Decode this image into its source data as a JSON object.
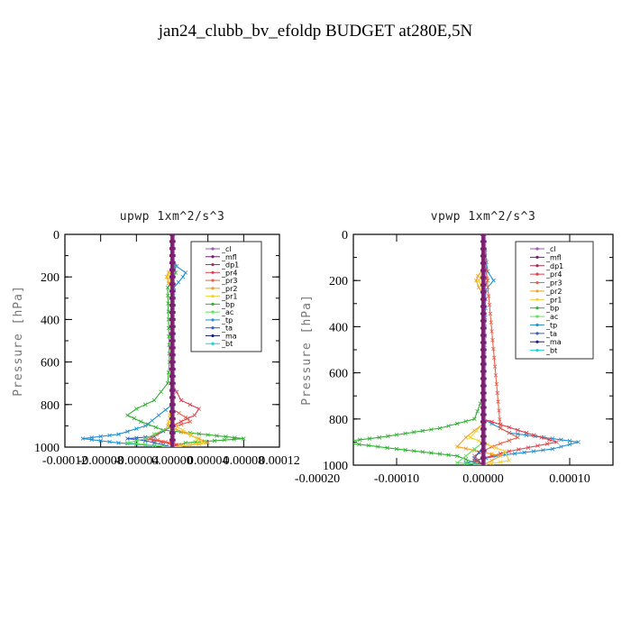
{
  "figure": {
    "title": "jan24_clubb_bv_efoldp  BUDGET at280E,5N"
  },
  "colors": {
    "_cl": "#9b59b6",
    "_mfl": "#7b1f6f",
    "_dp1": "#a0305a",
    "_pr4": "#e0404a",
    "_pr3": "#e8604a",
    "_pr2": "#f0a020",
    "_pr1": "#f5d030",
    "_bp": "#30b030",
    "_ac": "#60e060",
    "_tp": "#2090d0",
    "_ta": "#3060c0",
    "_ma": "#202080",
    "_bt": "#20d0d0"
  },
  "chart_data": [
    {
      "type": "line",
      "title": "upwp   1xm^2/s^3",
      "ylabel": "Pressure [hPa]",
      "xlim": [
        -0.00012,
        0.00012
      ],
      "ylim": [
        1000,
        0
      ],
      "x_ticks": [
        "-0.00012",
        "-0.00008",
        "-0.00004",
        "0.00000",
        "0.00004",
        "0.00008",
        "0.00012"
      ],
      "y_ticks": [
        "0",
        "200",
        "400",
        "600",
        "800",
        "1000"
      ],
      "legend": [
        "_cl",
        "_mfl",
        "_dp1",
        "_pr4",
        "_pr3",
        "_pr2",
        "_pr1",
        "_bp",
        "_ac",
        "_tp",
        "_ta",
        "_ma",
        "_bt"
      ],
      "legend_position": "top-right",
      "series": [
        {
          "name": "_bp",
          "y": [
            0,
            100,
            150,
            180,
            250,
            400,
            600,
            700,
            780,
            820,
            850,
            880,
            920,
            960,
            980,
            1000
          ],
          "x": [
            0,
            0,
            3e-06,
            4e-06,
            -5e-06,
            -4e-06,
            -3e-06,
            -5e-06,
            -2e-05,
            -4e-05,
            -5e-05,
            -3.5e-05,
            -1e-05,
            8e-05,
            1.5e-05,
            0
          ]
        },
        {
          "name": "_tp",
          "y": [
            0,
            100,
            150,
            180,
            200,
            250,
            400,
            800,
            900,
            940,
            960,
            980,
            1000
          ],
          "x": [
            0,
            0,
            5e-06,
            1.5e-05,
            1.2e-05,
            2e-06,
            0,
            0,
            -3e-05,
            -6e-05,
            -0.0001,
            -6e-05,
            0
          ]
        },
        {
          "name": "_ta",
          "y": [
            0,
            900,
            950,
            960,
            970,
            990,
            1000
          ],
          "x": [
            0,
            0,
            -2e-05,
            -5e-05,
            -3e-05,
            -1e-05,
            0
          ]
        },
        {
          "name": "_pr4",
          "y": [
            0,
            700,
            780,
            820,
            850,
            880,
            920,
            960,
            990,
            1000
          ],
          "x": [
            0,
            0,
            1e-05,
            3e-05,
            2.5e-05,
            1e-05,
            -1e-05,
            -3e-05,
            5e-06,
            0
          ]
        },
        {
          "name": "_pr3",
          "y": [
            0,
            820,
            860,
            880,
            920,
            960,
            990,
            1000
          ],
          "x": [
            0,
            0,
            1.5e-05,
            2e-05,
            -1e-05,
            -2.5e-05,
            1e-05,
            0
          ]
        },
        {
          "name": "_pr2",
          "y": [
            0,
            150,
            180,
            200,
            230,
            260,
            800,
            900,
            960,
            980,
            1000
          ],
          "x": [
            0,
            0,
            -4e-06,
            -6e-06,
            -4e-06,
            0,
            0,
            -5e-06,
            3e-05,
            4e-05,
            0
          ]
        },
        {
          "name": "_pr1",
          "y": [
            0,
            150,
            180,
            200,
            230,
            800,
            880,
            940,
            980,
            1000
          ],
          "x": [
            0,
            0,
            -3e-06,
            -5e-06,
            0,
            0,
            -4e-06,
            2e-05,
            3.5e-05,
            0
          ]
        },
        {
          "name": "_ac",
          "y": [
            0,
            900,
            960,
            980,
            1000
          ],
          "x": [
            0,
            0,
            -3e-05,
            -5e-05,
            0
          ]
        },
        {
          "name": "_dp1",
          "y": [
            0,
            1000
          ],
          "x": [
            0,
            0
          ]
        },
        {
          "name": "_cl",
          "y": [
            0,
            1000
          ],
          "x": [
            1e-06,
            1e-06
          ]
        },
        {
          "name": "_mfl",
          "y": [
            0,
            1000
          ],
          "x": [
            0,
            0
          ]
        }
      ]
    },
    {
      "type": "line",
      "title": "vpwp   1xm^2/s^3",
      "ylabel": "Pressure [hPa]",
      "xlim": [
        -0.00015,
        0.00015
      ],
      "ylim": [
        1000,
        0
      ],
      "x_ticks": [
        "-0.00020",
        "-0.00010",
        "0.00000",
        "0.00010"
      ],
      "y_ticks": [
        "0",
        "200",
        "400",
        "600",
        "800",
        "1000"
      ],
      "legend": [
        "_cl",
        "_mfl",
        "_dp1",
        "_pr4",
        "_pr3",
        "_pr2",
        "_pr1",
        "_bp",
        "_ac",
        "_tp",
        "_ta",
        "_ma",
        "_bt"
      ],
      "legend_position": "top-right",
      "series": [
        {
          "name": "_bp",
          "y": [
            0,
            150,
            200,
            250,
            700,
            800,
            840,
            880,
            900,
            930,
            960,
            990,
            1000
          ],
          "x": [
            0,
            3e-06,
            5e-06,
            0,
            0,
            -1e-05,
            -5e-05,
            -0.00012,
            -0.000165,
            -0.0001,
            -3e-05,
            -1e-05,
            0
          ]
        },
        {
          "name": "_tp",
          "y": [
            0,
            160,
            200,
            240,
            800,
            860,
            900,
            930,
            960,
            990,
            1000
          ],
          "x": [
            0,
            5e-06,
            1.2e-05,
            3e-06,
            0,
            3e-05,
            0.00011,
            8e-05,
            1.5e-05,
            -2e-05,
            0
          ]
        },
        {
          "name": "_pr4",
          "y": [
            0,
            800,
            860,
            900,
            940,
            980,
            1000
          ],
          "x": [
            0,
            0,
            5e-05,
            8.5e-05,
            3e-05,
            -1e-05,
            0
          ]
        },
        {
          "name": "_pr3",
          "y": [
            0,
            840,
            880,
            920,
            960,
            1000
          ],
          "x": [
            0,
            2e-05,
            4e-05,
            1e-05,
            -1e-05,
            0
          ]
        },
        {
          "name": "_pr2",
          "y": [
            0,
            150,
            180,
            200,
            230,
            260,
            820,
            880,
            920,
            960,
            1000
          ],
          "x": [
            0,
            0,
            -6e-06,
            -8e-06,
            -5e-06,
            0,
            0,
            -2e-05,
            -3e-05,
            2e-05,
            0
          ]
        },
        {
          "name": "_pr1",
          "y": [
            0,
            150,
            200,
            250,
            820,
            880,
            940,
            980,
            1000
          ],
          "x": [
            0,
            0,
            -5e-06,
            0,
            0,
            -1.5e-05,
            2.5e-05,
            3e-05,
            0
          ]
        },
        {
          "name": "_ac",
          "y": [
            0,
            900,
            960,
            990,
            1000
          ],
          "x": [
            0,
            0,
            -2e-05,
            -3e-05,
            0
          ]
        },
        {
          "name": "_ta",
          "y": [
            0,
            920,
            970,
            1000
          ],
          "x": [
            0,
            0,
            -1e-05,
            0
          ]
        },
        {
          "name": "_dp1",
          "y": [
            0,
            1000
          ],
          "x": [
            0,
            0
          ]
        },
        {
          "name": "_cl",
          "y": [
            0,
            1000
          ],
          "x": [
            1e-06,
            1e-06
          ]
        },
        {
          "name": "_mfl",
          "y": [
            0,
            1000
          ],
          "x": [
            0,
            0
          ]
        }
      ]
    }
  ]
}
